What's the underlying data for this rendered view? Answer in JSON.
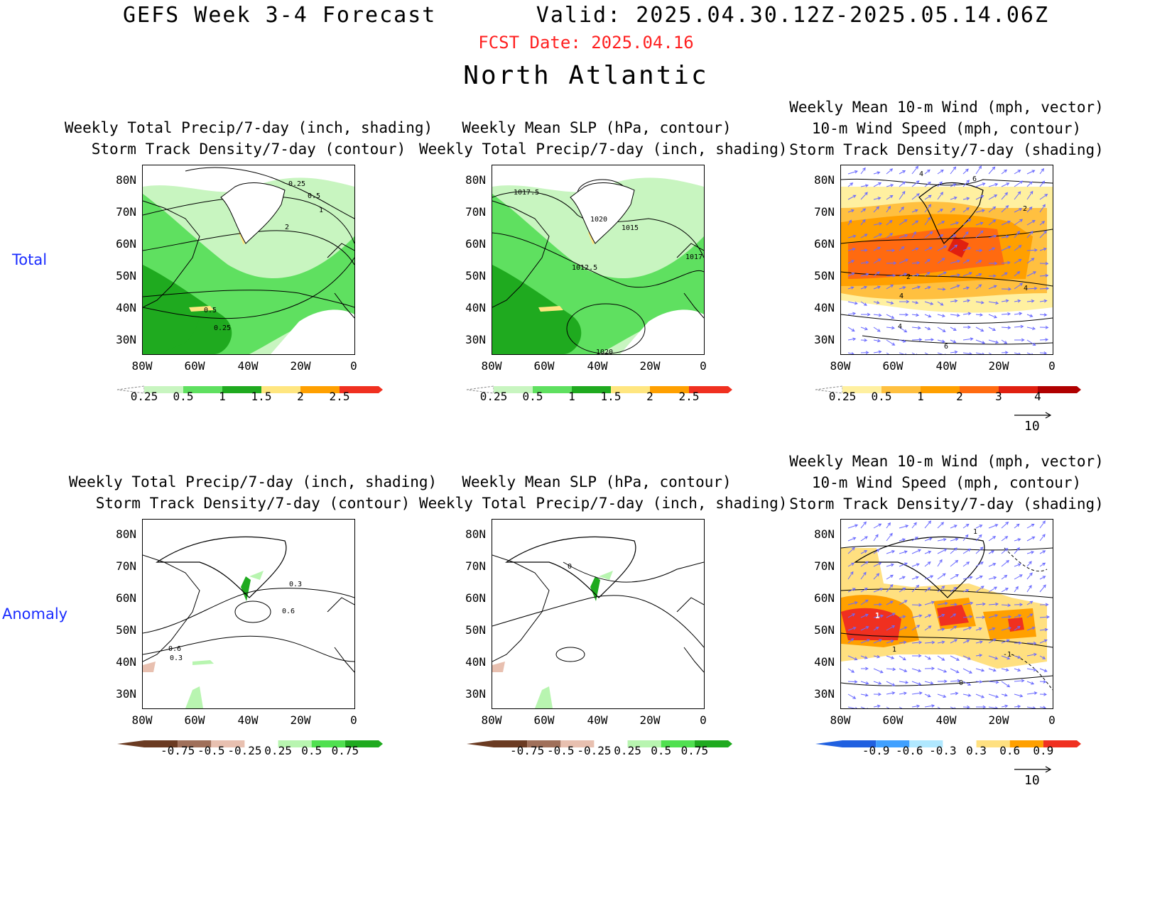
{
  "header": {
    "title": "GEFS Week 3-4 Forecast       Valid: 2025.04.30.12Z-2025.05.14.06Z",
    "fcst_date": "FCST Date: 2025.04.16",
    "region": "North Atlantic"
  },
  "row_labels": {
    "total": "Total",
    "anomaly": "Anomaly"
  },
  "axes": {
    "lat_ticks": [
      "80N",
      "70N",
      "60N",
      "50N",
      "40N",
      "30N"
    ],
    "lon_ticks": [
      "80W",
      "60W",
      "40W",
      "20W",
      "0"
    ]
  },
  "panels": {
    "precip_storm": {
      "title_line1": "Weekly Total Precip/7-day (inch, shading)",
      "title_line2": "Storm Track Density/7-day (contour)"
    },
    "slp_precip": {
      "title_line1": "Weekly Mean SLP (hPa, contour)",
      "title_line2": "Weekly Total Precip/7-day (inch, shading)"
    },
    "wind_storm": {
      "title_line1": "Weekly Mean 10-m Wind (mph, vector)",
      "title_line2": "10-m Wind Speed (mph, contour)",
      "title_line3": "Storm Track Density/7-day (shading)"
    }
  },
  "contour_labels": {
    "total_precip": [
      "0.25",
      "0.5",
      "1",
      "2",
      "0.5",
      "0.25"
    ],
    "total_slp": [
      "1017.5",
      "1020",
      "1015",
      "1017",
      "1012.5",
      "1020"
    ],
    "total_wind": [
      "4",
      "6",
      "2",
      "2",
      "4",
      "4",
      "4",
      "6"
    ],
    "anom_precip": [
      "0.3",
      "0.6",
      "0.6",
      "0.3"
    ],
    "anom_slp": [
      "0"
    ],
    "anom_wind": [
      "1",
      "1",
      "1",
      "-1",
      "0"
    ]
  },
  "colorbars": {
    "total_precip": {
      "labels": [
        "0.25",
        "0.5",
        "1",
        "1.5",
        "2",
        "2.5"
      ],
      "colors": [
        "#c8f5c0",
        "#5fe060",
        "#1faa1f",
        "#ffe680",
        "#ffa000",
        "#f03020"
      ]
    },
    "total_storm": {
      "labels": [
        "0.25",
        "0.5",
        "1",
        "2",
        "3",
        "4"
      ],
      "colors": [
        "#fff0a0",
        "#ffc040",
        "#ffa000",
        "#ff6a10",
        "#e02010",
        "#b00000"
      ]
    },
    "anom_precip": {
      "labels": [
        "-0.75",
        "-0.5",
        "-0.25",
        "0.25",
        "0.5",
        "0.75"
      ],
      "colors": [
        "#6b3b22",
        "#a0705a",
        "#e8c0b0",
        "#ffffff",
        "#b8f5b0",
        "#50e050",
        "#1faa1f"
      ]
    },
    "anom_storm": {
      "labels": [
        "-0.9",
        "-0.6",
        "-0.3",
        "0.3",
        "0.6",
        "0.9"
      ],
      "colors": [
        "#2060e0",
        "#40a0ff",
        "#b0e8ff",
        "#ffffff",
        "#ffe080",
        "#ffa000",
        "#f03020"
      ]
    }
  },
  "vector_reference": "10",
  "palette": {
    "title_red": "#ff2020",
    "row_label_blue": "#1a2cff",
    "vector": "#6a6aff"
  }
}
